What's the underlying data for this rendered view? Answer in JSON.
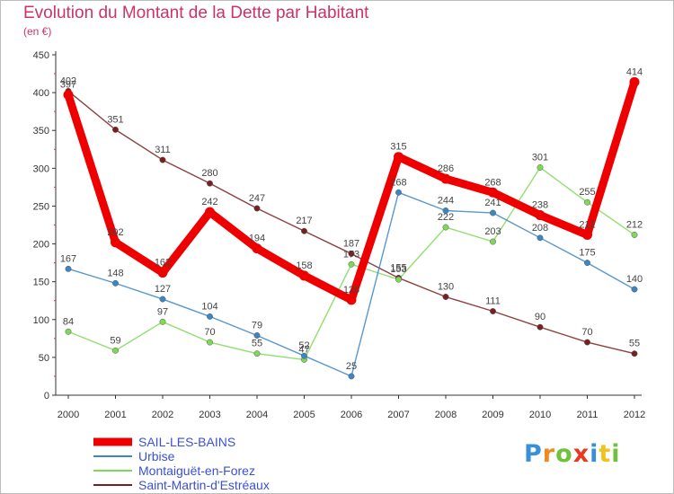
{
  "header": {
    "title": "Evolution du Montant de la Dette par Habitant",
    "unit": "(en €)"
  },
  "logo": {
    "text": "Proxiti",
    "letter_colors": [
      "#3a8fd9",
      "#f08a1e",
      "#6fc23a",
      "#e8381e",
      "#3a8fd9",
      "#f0c21e",
      "#6fc23a"
    ]
  },
  "chart_data": {
    "type": "line",
    "title": "Evolution du Montant de la Dette par Habitant",
    "subtitle": "(en €)",
    "xlabel": "",
    "ylabel": "",
    "x": [
      "2000",
      "2001",
      "2002",
      "2003",
      "2004",
      "2005",
      "2006",
      "2007",
      "2008",
      "2009",
      "2010",
      "2011",
      "2012"
    ],
    "ylim": [
      0,
      450
    ],
    "yticks": [
      0,
      50,
      100,
      150,
      200,
      250,
      300,
      350,
      400,
      450
    ],
    "grid": false,
    "legend_position": "bottom-left",
    "series": [
      {
        "name": "SAIL-LES-BAINS",
        "color": "#ee0000",
        "values": [
          397,
          202,
          162,
          242,
          194,
          158,
          126,
          315,
          286,
          268,
          238,
          212,
          414
        ]
      },
      {
        "name": "Urbise",
        "color": "#3b86c4",
        "values": [
          167,
          148,
          127,
          104,
          79,
          52,
          25,
          268,
          244,
          241,
          208,
          175,
          140
        ]
      },
      {
        "name": "Montaiguët-en-Forez",
        "color": "#7ed957",
        "values": [
          84,
          59,
          97,
          70,
          55,
          47,
          173,
          153,
          222,
          203,
          301,
          255,
          212
        ]
      },
      {
        "name": "Saint-Martin-d'Estréaux",
        "color": "#7a1f1f",
        "values": [
          402,
          351,
          311,
          280,
          247,
          217,
          187,
          155,
          130,
          111,
          90,
          70,
          55
        ]
      }
    ]
  }
}
